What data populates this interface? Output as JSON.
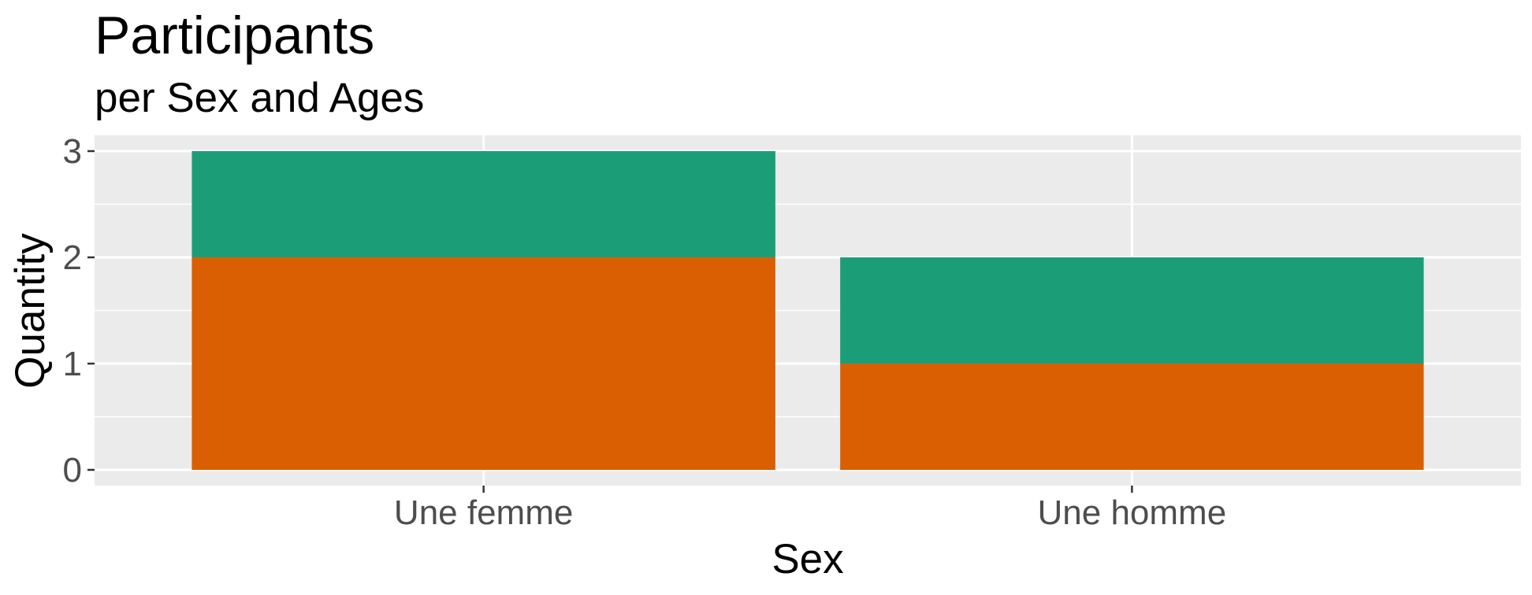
{
  "chart_data": {
    "type": "bar",
    "stacked": true,
    "title": "Participants",
    "subtitle": "per Sex and Ages",
    "xlabel": "Sex",
    "ylabel": "Quantity",
    "categories": [
      "Une femme",
      "Une homme"
    ],
    "series": [
      {
        "color": "#D95F02",
        "values": [
          2,
          1
        ]
      },
      {
        "color": "#1B9E77",
        "values": [
          1,
          1
        ]
      }
    ],
    "ylim": [
      0,
      3
    ],
    "yticks": [
      0,
      1,
      2,
      3
    ],
    "grid": true,
    "legend": "none",
    "panel_background": "#EBEBEB",
    "grid_color": "#FFFFFF"
  }
}
